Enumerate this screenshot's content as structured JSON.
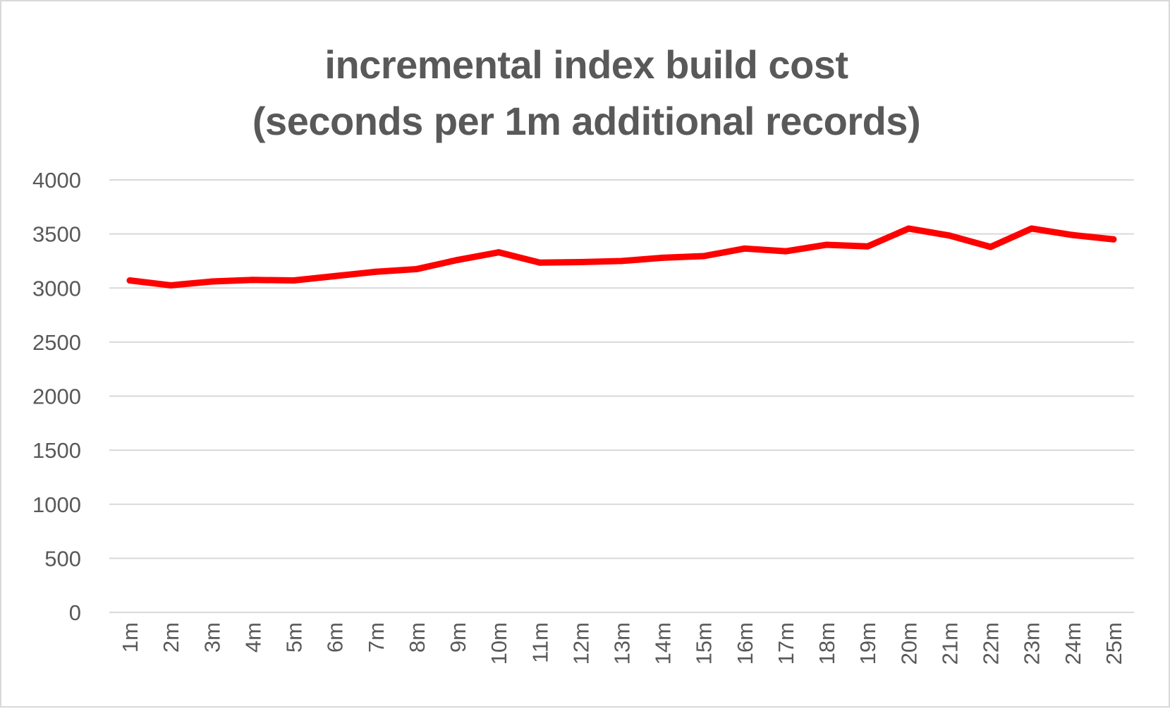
{
  "chart_data": {
    "type": "line",
    "title": "incremental index build cost",
    "subtitle": "(seconds per 1m additional records)",
    "xlabel": "",
    "ylabel": "",
    "categories": [
      "1m",
      "2m",
      "3m",
      "4m",
      "5m",
      "6m",
      "7m",
      "8m",
      "9m",
      "10m",
      "11m",
      "12m",
      "13m",
      "14m",
      "15m",
      "16m",
      "17m",
      "18m",
      "19m",
      "20m",
      "21m",
      "22m",
      "23m",
      "24m",
      "25m"
    ],
    "series": [
      {
        "name": "",
        "color": "#ff0000",
        "values": [
          3070,
          3025,
          3060,
          3075,
          3070,
          3110,
          3150,
          3175,
          3260,
          3330,
          3235,
          3240,
          3250,
          3280,
          3295,
          3365,
          3340,
          3400,
          3385,
          3550,
          3485,
          3380,
          3550,
          3490,
          3450
        ]
      }
    ],
    "ylim": [
      0,
      4000
    ],
    "yticks": [
      0,
      500,
      1000,
      1500,
      2000,
      2500,
      3000,
      3500,
      4000
    ],
    "grid": true,
    "legend": "none",
    "colors": {
      "grid": "#d9d9d9",
      "text": "#595959",
      "line": "#ff0000"
    }
  }
}
